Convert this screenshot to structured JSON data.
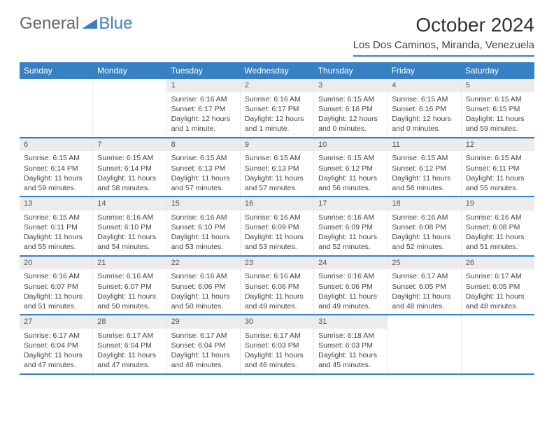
{
  "logo": {
    "text_general": "General",
    "text_blue": "Blue",
    "triangle_color": "#3880c4"
  },
  "title": "October 2024",
  "location": "Los Dos Caminos, Miranda, Venezuela",
  "colors": {
    "header_bg": "#3880c4",
    "header_text": "#ffffff",
    "daynum_bg": "#ececec",
    "border": "#3880c4"
  },
  "weekdays": [
    "Sunday",
    "Monday",
    "Tuesday",
    "Wednesday",
    "Thursday",
    "Friday",
    "Saturday"
  ],
  "weeks": [
    [
      null,
      null,
      {
        "n": "1",
        "sunrise": "Sunrise: 6:16 AM",
        "sunset": "Sunset: 6:17 PM",
        "daylight": "Daylight: 12 hours and 1 minute."
      },
      {
        "n": "2",
        "sunrise": "Sunrise: 6:16 AM",
        "sunset": "Sunset: 6:17 PM",
        "daylight": "Daylight: 12 hours and 1 minute."
      },
      {
        "n": "3",
        "sunrise": "Sunrise: 6:15 AM",
        "sunset": "Sunset: 6:16 PM",
        "daylight": "Daylight: 12 hours and 0 minutes."
      },
      {
        "n": "4",
        "sunrise": "Sunrise: 6:15 AM",
        "sunset": "Sunset: 6:16 PM",
        "daylight": "Daylight: 12 hours and 0 minutes."
      },
      {
        "n": "5",
        "sunrise": "Sunrise: 6:15 AM",
        "sunset": "Sunset: 6:15 PM",
        "daylight": "Daylight: 11 hours and 59 minutes."
      }
    ],
    [
      {
        "n": "6",
        "sunrise": "Sunrise: 6:15 AM",
        "sunset": "Sunset: 6:14 PM",
        "daylight": "Daylight: 11 hours and 59 minutes."
      },
      {
        "n": "7",
        "sunrise": "Sunrise: 6:15 AM",
        "sunset": "Sunset: 6:14 PM",
        "daylight": "Daylight: 11 hours and 58 minutes."
      },
      {
        "n": "8",
        "sunrise": "Sunrise: 6:15 AM",
        "sunset": "Sunset: 6:13 PM",
        "daylight": "Daylight: 11 hours and 57 minutes."
      },
      {
        "n": "9",
        "sunrise": "Sunrise: 6:15 AM",
        "sunset": "Sunset: 6:13 PM",
        "daylight": "Daylight: 11 hours and 57 minutes."
      },
      {
        "n": "10",
        "sunrise": "Sunrise: 6:15 AM",
        "sunset": "Sunset: 6:12 PM",
        "daylight": "Daylight: 11 hours and 56 minutes."
      },
      {
        "n": "11",
        "sunrise": "Sunrise: 6:15 AM",
        "sunset": "Sunset: 6:12 PM",
        "daylight": "Daylight: 11 hours and 56 minutes."
      },
      {
        "n": "12",
        "sunrise": "Sunrise: 6:15 AM",
        "sunset": "Sunset: 6:11 PM",
        "daylight": "Daylight: 11 hours and 55 minutes."
      }
    ],
    [
      {
        "n": "13",
        "sunrise": "Sunrise: 6:15 AM",
        "sunset": "Sunset: 6:11 PM",
        "daylight": "Daylight: 11 hours and 55 minutes."
      },
      {
        "n": "14",
        "sunrise": "Sunrise: 6:16 AM",
        "sunset": "Sunset: 6:10 PM",
        "daylight": "Daylight: 11 hours and 54 minutes."
      },
      {
        "n": "15",
        "sunrise": "Sunrise: 6:16 AM",
        "sunset": "Sunset: 6:10 PM",
        "daylight": "Daylight: 11 hours and 53 minutes."
      },
      {
        "n": "16",
        "sunrise": "Sunrise: 6:16 AM",
        "sunset": "Sunset: 6:09 PM",
        "daylight": "Daylight: 11 hours and 53 minutes."
      },
      {
        "n": "17",
        "sunrise": "Sunrise: 6:16 AM",
        "sunset": "Sunset: 6:09 PM",
        "daylight": "Daylight: 11 hours and 52 minutes."
      },
      {
        "n": "18",
        "sunrise": "Sunrise: 6:16 AM",
        "sunset": "Sunset: 6:08 PM",
        "daylight": "Daylight: 11 hours and 52 minutes."
      },
      {
        "n": "19",
        "sunrise": "Sunrise: 6:16 AM",
        "sunset": "Sunset: 6:08 PM",
        "daylight": "Daylight: 11 hours and 51 minutes."
      }
    ],
    [
      {
        "n": "20",
        "sunrise": "Sunrise: 6:16 AM",
        "sunset": "Sunset: 6:07 PM",
        "daylight": "Daylight: 11 hours and 51 minutes."
      },
      {
        "n": "21",
        "sunrise": "Sunrise: 6:16 AM",
        "sunset": "Sunset: 6:07 PM",
        "daylight": "Daylight: 11 hours and 50 minutes."
      },
      {
        "n": "22",
        "sunrise": "Sunrise: 6:16 AM",
        "sunset": "Sunset: 6:06 PM",
        "daylight": "Daylight: 11 hours and 50 minutes."
      },
      {
        "n": "23",
        "sunrise": "Sunrise: 6:16 AM",
        "sunset": "Sunset: 6:06 PM",
        "daylight": "Daylight: 11 hours and 49 minutes."
      },
      {
        "n": "24",
        "sunrise": "Sunrise: 6:16 AM",
        "sunset": "Sunset: 6:06 PM",
        "daylight": "Daylight: 11 hours and 49 minutes."
      },
      {
        "n": "25",
        "sunrise": "Sunrise: 6:17 AM",
        "sunset": "Sunset: 6:05 PM",
        "daylight": "Daylight: 11 hours and 48 minutes."
      },
      {
        "n": "26",
        "sunrise": "Sunrise: 6:17 AM",
        "sunset": "Sunset: 6:05 PM",
        "daylight": "Daylight: 11 hours and 48 minutes."
      }
    ],
    [
      {
        "n": "27",
        "sunrise": "Sunrise: 6:17 AM",
        "sunset": "Sunset: 6:04 PM",
        "daylight": "Daylight: 11 hours and 47 minutes."
      },
      {
        "n": "28",
        "sunrise": "Sunrise: 6:17 AM",
        "sunset": "Sunset: 6:04 PM",
        "daylight": "Daylight: 11 hours and 47 minutes."
      },
      {
        "n": "29",
        "sunrise": "Sunrise: 6:17 AM",
        "sunset": "Sunset: 6:04 PM",
        "daylight": "Daylight: 11 hours and 46 minutes."
      },
      {
        "n": "30",
        "sunrise": "Sunrise: 6:17 AM",
        "sunset": "Sunset: 6:03 PM",
        "daylight": "Daylight: 11 hours and 46 minutes."
      },
      {
        "n": "31",
        "sunrise": "Sunrise: 6:18 AM",
        "sunset": "Sunset: 6:03 PM",
        "daylight": "Daylight: 11 hours and 45 minutes."
      },
      null,
      null
    ]
  ]
}
